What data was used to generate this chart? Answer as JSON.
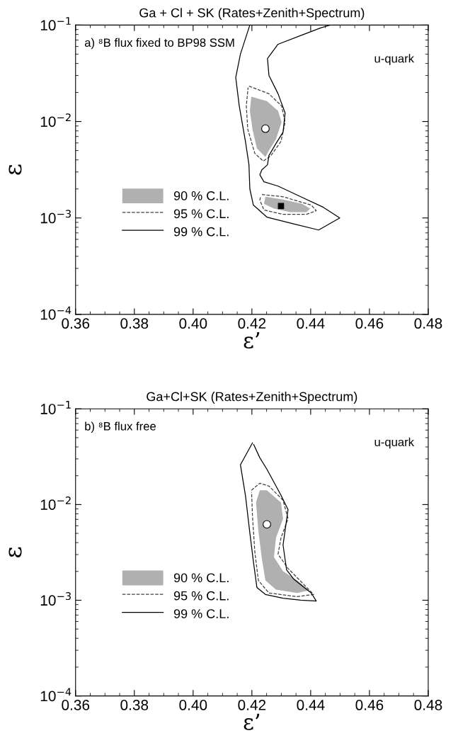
{
  "chart_data": [
    {
      "type": "line",
      "title": "Ga + Cl + SK (Rates+Zenith+Spectrum)",
      "xlabel": "ε’",
      "ylabel": "ε",
      "annotations": [
        "a) ⁸B flux fixed to BP98 SSM",
        "u-quark"
      ],
      "log": "y",
      "xlim": [
        0.36,
        0.48
      ],
      "xticks": [
        {
          "value": 0.36,
          "label": "0.36"
        },
        {
          "value": 0.38,
          "label": "0.38"
        },
        {
          "value": 0.4,
          "label": "0.40"
        },
        {
          "value": 0.42,
          "label": "0.42"
        },
        {
          "value": 0.44,
          "label": "0.44"
        },
        {
          "value": 0.46,
          "label": "0.46"
        },
        {
          "value": 0.48,
          "label": "0.48"
        }
      ],
      "ylim": [
        0.0001,
        0.1
      ],
      "yticks": [
        {
          "value": 0.0001,
          "label": "10$^{−4}$"
        },
        {
          "value": 0.001,
          "label": "10$^{−3}$"
        },
        {
          "value": 0.01,
          "label": "10$^{−2}$"
        },
        {
          "value": 0.1,
          "label": "10$^{−1}$"
        }
      ],
      "legend": "bottom left",
      "grid": false,
      "series": [
        {
          "name": "90 % C.L.",
          "type": "area",
          "color": "#b0b0b0",
          "x": [
            0.4198,
            0.4251,
            0.4289,
            0.4301,
            0.4282,
            0.4258,
            0.4246,
            0.4217,
            0.4202,
            0.4193,
            null,
            0.4246,
            0.4306,
            0.4371,
            0.4398,
            0.4386,
            0.433,
            0.4275,
            0.4241
          ],
          "values": [
            0.0181,
            0.0163,
            0.0129,
            0.00984,
            0.00655,
            0.005,
            0.00429,
            0.00526,
            0.00829,
            0.0129,
            null,
            0.00166,
            0.00155,
            0.0014,
            0.00125,
            0.00115,
            0.00115,
            0.00125,
            0.0014
          ]
        },
        {
          "name": "95 % C.L.",
          "line_style": "dashed",
          "color": "#404040",
          "x": [
            0.419,
            0.4258,
            0.4301,
            0.4313,
            0.4299,
            0.4265,
            0.4239,
            0.421,
            0.4186,
            0.4181,
            0.4187,
            null,
            0.4234,
            0.4306,
            0.4402,
            0.4419,
            0.4386,
            0.4306,
            0.4241,
            0.4227,
            0.423
          ],
          "values": [
            0.0233,
            0.0194,
            0.0145,
            0.00984,
            0.00622,
            0.00444,
            0.00388,
            0.00467,
            0.00829,
            0.0145,
            0.0225,
            null,
            0.00175,
            0.00166,
            0.00136,
            0.00119,
            0.00109,
            0.00109,
            0.00121,
            0.00153,
            0.00168
          ]
        },
        {
          "name": "99 % C.L.",
          "line_style": "solid",
          "color": "#000000",
          "x": [
            0.4193,
            0.4161,
            0.4145,
            0.4157,
            0.4178,
            0.419,
            0.4193,
            0.4205,
            0.4251,
            0.4347,
            0.4427,
            0.4499,
            0.4443,
            0.4361,
            0.4289,
            0.4241,
            0.4227,
            0.4234,
            0.4253,
            0.4258,
            0.4282,
            0.4306,
            0.4313,
            0.4289,
            0.4258,
            0.4253,
            0.4289,
            0.4371,
            0.4434,
            0.4467
          ],
          "values": [
            0.1,
            0.05,
            0.0286,
            0.0145,
            0.00622,
            0.00356,
            0.002,
            0.00136,
            0.00102,
            0.00086,
            0.00075,
            0.001,
            0.00129,
            0.00169,
            0.00214,
            0.00237,
            0.00281,
            0.00316,
            0.00356,
            0.00444,
            0.00591,
            0.00776,
            0.01225,
            0.0194,
            0.0301,
            0.0451,
            0.0633,
            0.0789,
            0.0935,
            0.1
          ]
        },
        {
          "type": "scatter",
          "marker": "circle",
          "color": "#ffffff",
          "x": [
            0.4246
          ],
          "values": [
            0.00843
          ]
        },
        {
          "type": "scatter",
          "marker": "square",
          "color": "#000000",
          "x": [
            0.4299
          ],
          "values": [
            0.00133
          ]
        }
      ]
    },
    {
      "type": "line",
      "title": "Ga+Cl+SK (Rates+Zenith+Spectrum)",
      "xlabel": "ε’",
      "ylabel": "ε",
      "annotations": [
        "b) ⁸B flux free",
        "u-quark"
      ],
      "log": "y",
      "xlim": [
        0.36,
        0.48
      ],
      "xticks": [
        {
          "value": 0.36,
          "label": "0.36"
        },
        {
          "value": 0.38,
          "label": "0.38"
        },
        {
          "value": 0.4,
          "label": "0.40"
        },
        {
          "value": 0.42,
          "label": "0.42"
        },
        {
          "value": 0.44,
          "label": "0.44"
        },
        {
          "value": 0.46,
          "label": "0.46"
        },
        {
          "value": 0.48,
          "label": "0.48"
        }
      ],
      "ylim": [
        0.0001,
        0.1
      ],
      "yticks": [
        {
          "value": 0.0001,
          "label": "10$^{−4}$"
        },
        {
          "value": 0.001,
          "label": "10$^{−3}$"
        },
        {
          "value": 0.01,
          "label": "10$^{−2}$"
        },
        {
          "value": 0.1,
          "label": "10$^{−1}$"
        }
      ],
      "legend": "bottom left",
      "grid": false,
      "series": [
        {
          "name": "90 % C.L.",
          "type": "area",
          "color": "#b0b0b0",
          "x": [
            0.4227,
            0.4251,
            0.4299,
            0.4306,
            0.4282,
            0.4275,
            0.4306,
            0.4354,
            0.4395,
            0.4354,
            0.4282,
            0.4246,
            0.4234,
            0.4222,
            0.4214
          ],
          "values": [
            0.0141,
            0.0141,
            0.0105,
            0.00711,
            0.00449,
            0.00283,
            0.00201,
            0.00161,
            0.00127,
            0.00119,
            0.00129,
            0.00161,
            0.00269,
            0.00532,
            0.0105
          ]
        },
        {
          "name": "95 % C.L.",
          "line_style": "dashed",
          "color": "#404040",
          "x": [
            0.4198,
            0.4227,
            0.4258,
            0.4306,
            0.4323,
            0.4299,
            0.4289,
            0.4323,
            0.441,
            0.4354,
            0.4258,
            0.4222,
            0.421,
            0.4202,
            0.4199
          ],
          "values": [
            0.0141,
            0.0167,
            0.0156,
            0.0111,
            0.00711,
            0.00449,
            0.00303,
            0.00215,
            0.00115,
            0.00109,
            0.00119,
            0.00161,
            0.00319,
            0.00749,
            0.0135
          ]
        },
        {
          "name": "99 % C.L.",
          "line_style": "solid",
          "color": "#000000",
          "x": [
            0.4202,
            0.4161,
            0.4178,
            0.4193,
            0.4205,
            0.4217,
            0.4246,
            0.4306,
            0.4366,
            0.4419,
            0.4402,
            0.4378,
            0.4342,
            0.4318,
            0.4306,
            0.4323,
            0.4299,
            0.4251,
            0.4227,
            0.4206
          ],
          "values": [
            0.0441,
            0.026,
            0.0125,
            0.00506,
            0.00255,
            0.00136,
            0.00115,
            0.00105,
            0.001,
            0.00098,
            0.00119,
            0.00136,
            0.00167,
            0.00208,
            0.00378,
            0.00887,
            0.0125,
            0.0234,
            0.0308,
            0.0425
          ]
        },
        {
          "type": "scatter",
          "marker": "circle",
          "color": "#ffffff",
          "x": [
            0.4251
          ],
          "values": [
            0.00621
          ]
        }
      ]
    }
  ]
}
